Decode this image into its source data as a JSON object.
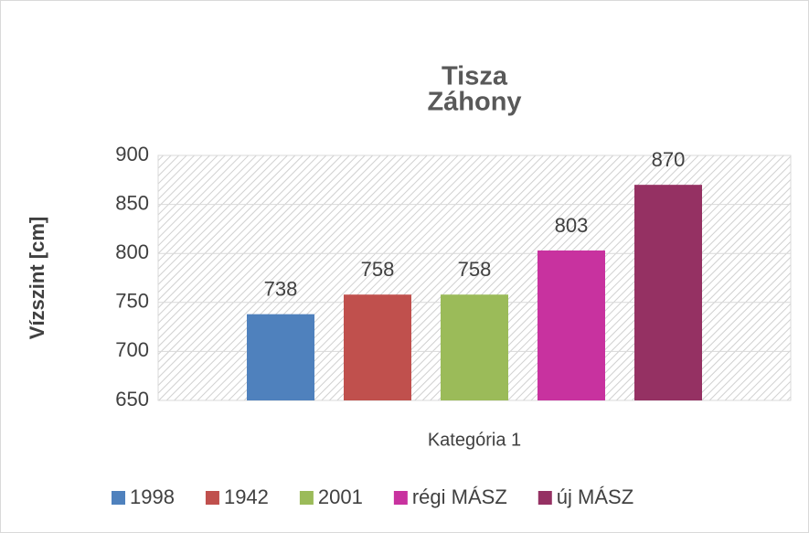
{
  "chart_data": {
    "type": "bar",
    "title": [
      "Tisza",
      "Záhony"
    ],
    "ylabel": "Vízszint [cm]",
    "categories": [
      "Kategória 1"
    ],
    "series": [
      {
        "name": "1998",
        "color": "#4f81bd",
        "values": [
          738
        ]
      },
      {
        "name": "1942",
        "color": "#c0504d",
        "values": [
          758
        ]
      },
      {
        "name": "2001",
        "color": "#9bbb59",
        "values": [
          758
        ]
      },
      {
        "name": "régi MÁSZ",
        "color": "#c8329f",
        "values": [
          803
        ]
      },
      {
        "name": "új MÁSZ",
        "color": "#953163",
        "values": [
          870
        ]
      }
    ],
    "ylim": [
      650,
      900
    ],
    "yticks": [
      650,
      700,
      750,
      800,
      850,
      900
    ],
    "grid": true,
    "legend": "bottom"
  }
}
